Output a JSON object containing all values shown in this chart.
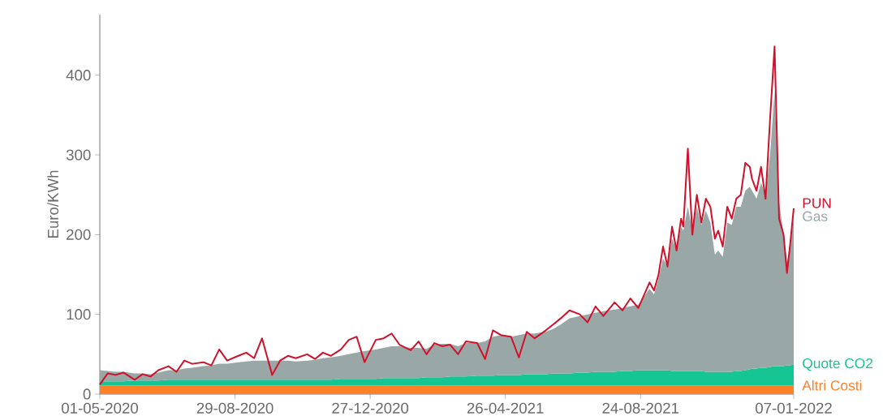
{
  "chart_data": {
    "type": "area",
    "ylabel": "Euro/KWh",
    "stacked": true,
    "x": [
      "2020-05-01",
      "2020-05-08",
      "2020-05-15",
      "2020-05-22",
      "2020-06-01",
      "2020-06-08",
      "2020-06-15",
      "2020-06-22",
      "2020-07-01",
      "2020-07-08",
      "2020-07-15",
      "2020-07-22",
      "2020-08-01",
      "2020-08-08",
      "2020-08-15",
      "2020-08-22",
      "2020-09-01",
      "2020-09-08",
      "2020-09-15",
      "2020-09-22",
      "2020-10-01",
      "2020-10-08",
      "2020-10-15",
      "2020-10-22",
      "2020-11-01",
      "2020-11-08",
      "2020-11-15",
      "2020-11-22",
      "2020-12-01",
      "2020-12-08",
      "2020-12-15",
      "2020-12-22",
      "2021-01-01",
      "2021-01-08",
      "2021-01-15",
      "2021-01-22",
      "2021-02-01",
      "2021-02-08",
      "2021-02-15",
      "2021-02-22",
      "2021-03-01",
      "2021-03-08",
      "2021-03-15",
      "2021-03-22",
      "2021-04-01",
      "2021-04-08",
      "2021-04-15",
      "2021-04-22",
      "2021-05-01",
      "2021-05-08",
      "2021-05-15",
      "2021-05-22",
      "2021-06-01",
      "2021-06-08",
      "2021-06-15",
      "2021-06-22",
      "2021-07-01",
      "2021-07-08",
      "2021-07-15",
      "2021-07-22",
      "2021-08-01",
      "2021-08-08",
      "2021-08-15",
      "2021-08-22",
      "2021-09-01",
      "2021-09-05",
      "2021-09-09",
      "2021-09-13",
      "2021-09-17",
      "2021-09-21",
      "2021-09-25",
      "2021-09-29",
      "2021-10-01",
      "2021-10-05",
      "2021-10-09",
      "2021-10-13",
      "2021-10-17",
      "2021-10-21",
      "2021-10-25",
      "2021-10-29",
      "2021-11-01",
      "2021-11-05",
      "2021-11-09",
      "2021-11-13",
      "2021-11-17",
      "2021-11-21",
      "2021-11-25",
      "2021-11-29",
      "2021-12-01",
      "2021-12-05",
      "2021-12-09",
      "2021-12-13",
      "2021-12-17",
      "2021-12-21",
      "2021-12-25",
      "2021-12-29",
      "2022-01-01",
      "2022-01-04",
      "2022-01-07"
    ],
    "series": [
      {
        "name": "Altri Costi",
        "color": "#fe8128",
        "values": [
          11,
          11,
          11,
          11,
          11,
          11,
          11,
          11,
          11,
          11,
          11,
          11,
          11,
          11,
          11,
          11,
          11,
          11,
          11,
          11,
          11,
          11,
          11,
          11,
          11,
          11,
          11,
          11,
          11,
          11,
          11,
          11,
          11,
          11,
          11,
          11,
          11,
          11,
          11,
          11,
          11,
          11,
          11,
          11,
          11,
          11,
          11,
          11,
          11,
          11,
          11,
          11,
          11,
          11,
          11,
          11,
          11,
          11,
          11,
          11,
          11,
          11,
          11,
          11,
          11,
          11,
          11,
          11,
          11,
          11,
          11,
          11,
          11,
          11,
          11,
          11,
          11,
          11,
          11,
          11,
          11,
          11,
          11,
          11,
          11,
          11,
          11,
          11,
          11,
          11,
          11,
          11,
          11,
          11,
          11,
          11,
          11,
          11,
          11
        ]
      },
      {
        "name": "Quote CO2",
        "color": "#16c594",
        "values": [
          5,
          5,
          5,
          5,
          6,
          6,
          6,
          6,
          7,
          7,
          7,
          7,
          7,
          7,
          7,
          7,
          7,
          7,
          7,
          7,
          7,
          7,
          7,
          7,
          7,
          7,
          7,
          7,
          8,
          8,
          8,
          8,
          8,
          9,
          9,
          9,
          9,
          9,
          10,
          10,
          10,
          11,
          11,
          11,
          12,
          12,
          12,
          13,
          13,
          13,
          14,
          14,
          14,
          15,
          15,
          15,
          16,
          16,
          17,
          17,
          17,
          18,
          18,
          19,
          19,
          19,
          19,
          19,
          19,
          18,
          18,
          18,
          18,
          18,
          18,
          18,
          18,
          17,
          17,
          17,
          17,
          17,
          17,
          17,
          18,
          18,
          19,
          20,
          21,
          21,
          22,
          22,
          23,
          24,
          24,
          24,
          25,
          25,
          26
        ]
      },
      {
        "name": "Gas",
        "color": "#9aa7a7",
        "values": [
          14,
          13,
          12,
          12,
          9,
          9,
          8,
          10,
          12,
          12,
          14,
          15,
          17,
          18,
          20,
          20,
          22,
          23,
          24,
          24,
          24,
          24,
          24,
          23,
          24,
          25,
          27,
          28,
          29,
          31,
          33,
          35,
          37,
          38,
          40,
          40,
          38,
          38,
          36,
          41,
          42,
          41,
          38,
          42,
          41,
          43,
          49,
          50,
          48,
          50,
          51,
          51,
          53,
          56,
          62,
          69,
          71,
          73,
          74,
          76,
          78,
          79,
          81,
          82,
          102,
          95,
          115,
          140,
          130,
          166,
          151,
          181,
          176,
          206,
          176,
          206,
          183,
          202,
          187,
          147,
          152,
          144,
          187,
          184,
          206,
          206,
          225,
          229,
          223,
          213,
          232,
          217,
          266,
          345,
          205,
          165,
          129,
          149,
          186
        ]
      },
      {
        "name": "PUN",
        "type": "line",
        "color": "#d0112b",
        "values": [
          12,
          26,
          24,
          27,
          18,
          25,
          22,
          30,
          35,
          28,
          42,
          38,
          40,
          36,
          56,
          42,
          48,
          52,
          45,
          70,
          24,
          42,
          48,
          45,
          50,
          44,
          52,
          48,
          56,
          68,
          72,
          40,
          68,
          70,
          76,
          62,
          55,
          66,
          50,
          64,
          60,
          62,
          50,
          66,
          64,
          44,
          80,
          74,
          72,
          46,
          78,
          70,
          80,
          88,
          96,
          105,
          100,
          90,
          110,
          98,
          115,
          105,
          120,
          108,
          140,
          130,
          150,
          185,
          160,
          210,
          180,
          220,
          210,
          308,
          200,
          250,
          215,
          245,
          235,
          195,
          205,
          185,
          235,
          220,
          245,
          250,
          290,
          285,
          270,
          255,
          285,
          245,
          345,
          436,
          220,
          200,
          152,
          190,
          233
        ]
      }
    ],
    "xlim": [
      "2020-05-01",
      "2022-01-07"
    ],
    "xticks": [
      {
        "value": "2020-05-01",
        "label": "01-05-2020"
      },
      {
        "value": "2020-08-29",
        "label": "29-08-2020"
      },
      {
        "value": "2020-12-27",
        "label": "27-12-2020"
      },
      {
        "value": "2021-04-26",
        "label": "26-04-2021"
      },
      {
        "value": "2021-08-24",
        "label": "24-08-2021"
      },
      {
        "value": "2022-01-07",
        "label": "07-01-2022"
      }
    ],
    "ylim": [
      0,
      476
    ],
    "yticks": [
      0,
      100,
      200,
      300,
      400
    ]
  }
}
